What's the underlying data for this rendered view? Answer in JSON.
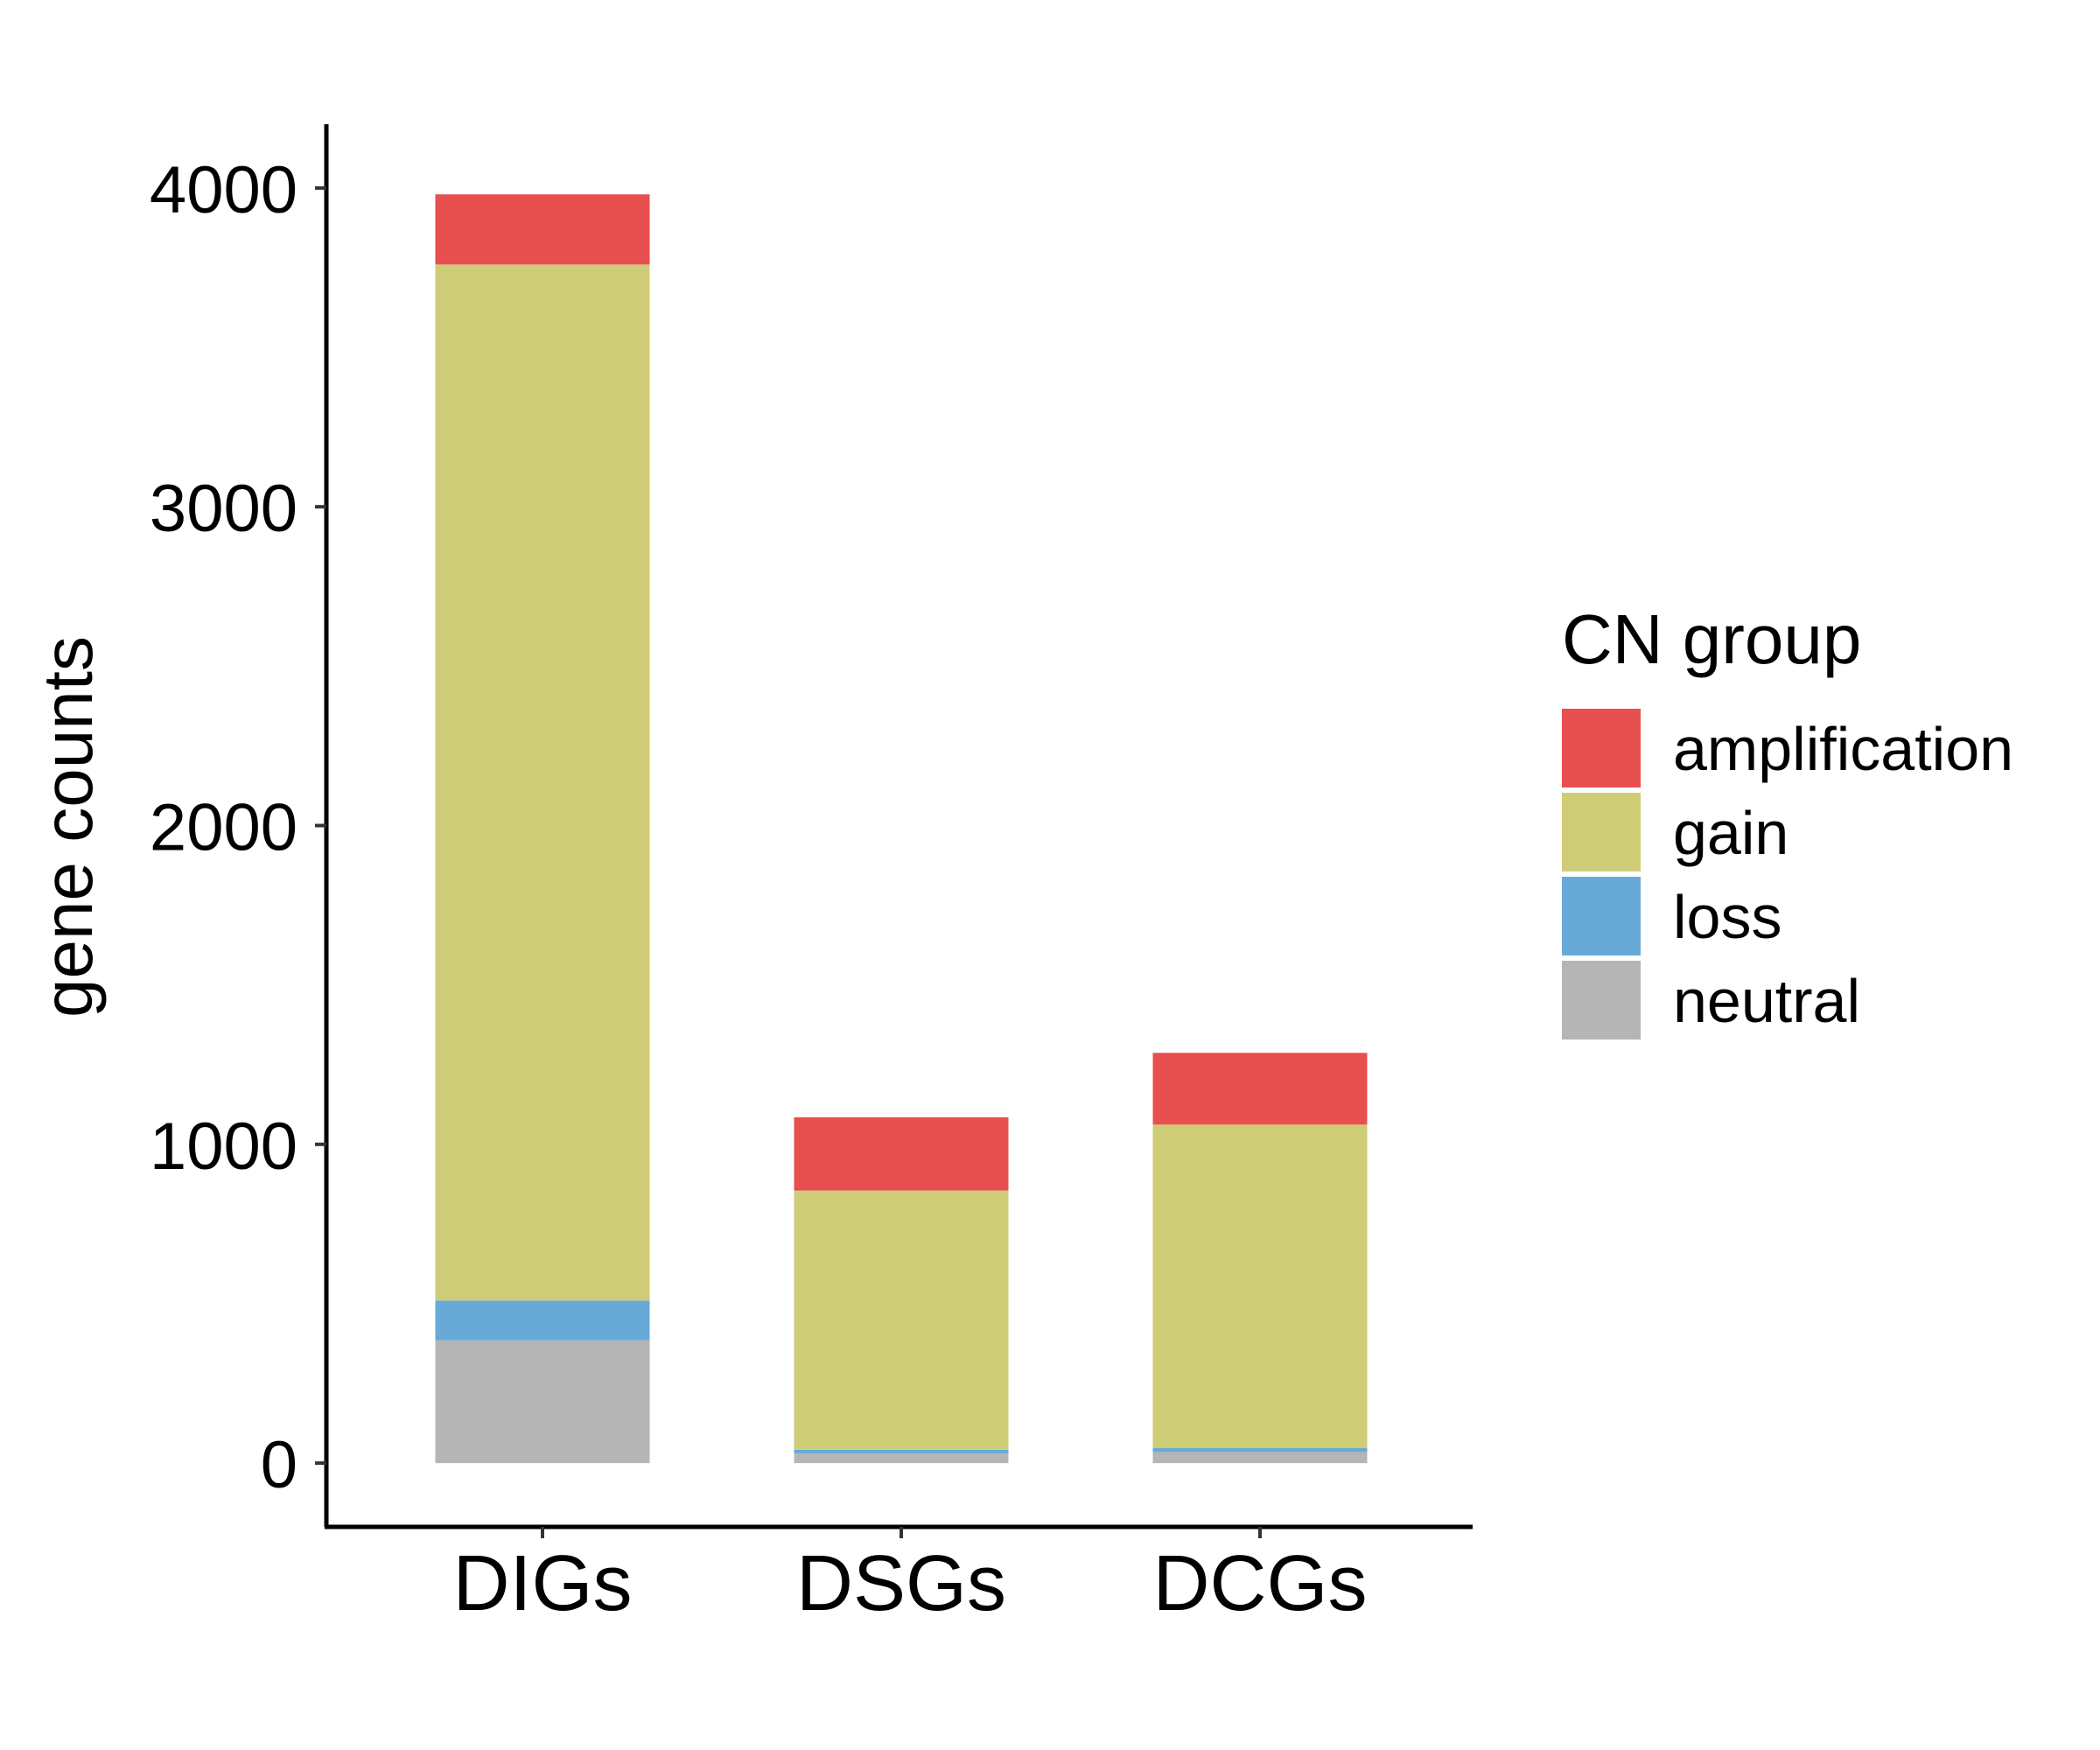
{
  "chart_data": {
    "type": "bar",
    "stacked": true,
    "categories": [
      "DIGs",
      "DSGs",
      "DCGs"
    ],
    "series": [
      {
        "name": "neutral",
        "color": "#b5b5b5",
        "values": [
          385,
          30,
          35
        ]
      },
      {
        "name": "loss",
        "color": "#67aad8",
        "values": [
          125,
          12,
          12
        ]
      },
      {
        "name": "gain",
        "color": "#cfcc78",
        "values": [
          3250,
          813,
          1015
        ]
      },
      {
        "name": "amplification",
        "color": "#e84f4f",
        "values": [
          220,
          230,
          225
        ]
      }
    ],
    "title": "",
    "xlabel": "",
    "ylabel": "gene counts",
    "ylim": [
      -200,
      4200
    ],
    "yticks": [
      "0",
      "1000",
      "2000",
      "3000",
      "4000"
    ],
    "grid": false,
    "legend": {
      "title": "CN group",
      "position": "right",
      "entries": [
        "amplification",
        "gain",
        "loss",
        "neutral"
      ]
    }
  }
}
